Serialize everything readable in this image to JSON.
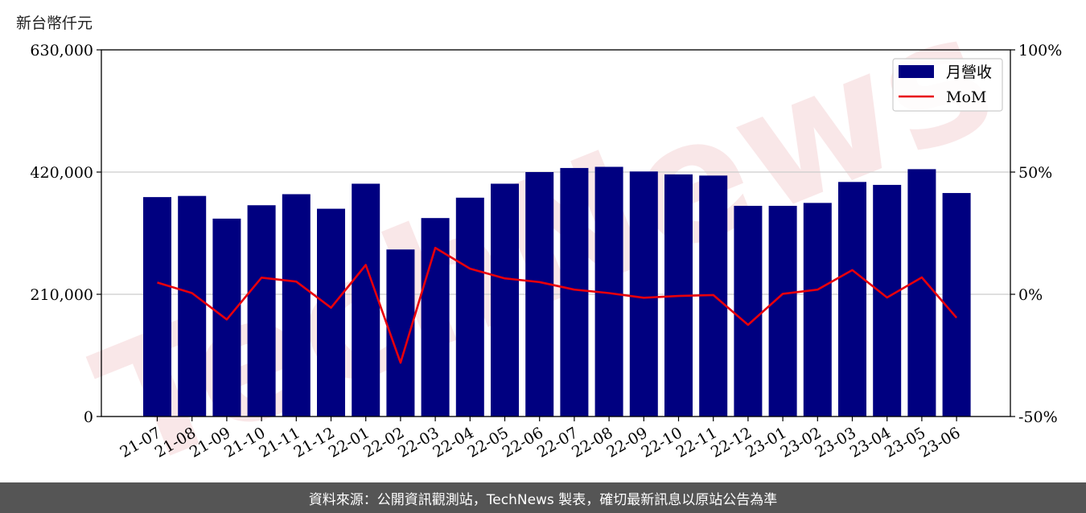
{
  "unit_label": "新台幣仟元",
  "footer_text": "資料來源：公開資訊觀測站，TechNews 製表，確切最新訊息以原站公告為準",
  "watermark": "TechNews",
  "chart_data": {
    "type": "bar",
    "categories": [
      "21-07",
      "21-08",
      "21-09",
      "21-10",
      "21-11",
      "21-12",
      "22-01",
      "22-02",
      "22-03",
      "22-04",
      "22-05",
      "22-06",
      "22-07",
      "22-08",
      "22-09",
      "22-10",
      "22-11",
      "22-12",
      "23-01",
      "23-02",
      "23-03",
      "23-04",
      "23-05",
      "23-06"
    ],
    "series": [
      {
        "name": "月營收",
        "axis": "left",
        "type": "bar",
        "color": "#000080",
        "values": [
          377000,
          379000,
          340000,
          363000,
          382000,
          357000,
          400000,
          287000,
          341000,
          376000,
          400000,
          420000,
          427000,
          429000,
          421000,
          416000,
          414000,
          362000,
          362000,
          367000,
          403000,
          398000,
          425000,
          384000
        ]
      },
      {
        "name": "MoM",
        "axis": "right",
        "type": "line",
        "color": "#e8000b",
        "values": [
          4.8,
          0.5,
          -10.3,
          6.8,
          5.2,
          -5.5,
          12.0,
          -28.0,
          19.0,
          10.5,
          6.5,
          5.0,
          1.9,
          0.5,
          -1.4,
          -0.7,
          -0.3,
          -12.5,
          0.2,
          1.9,
          9.9,
          -1.3,
          6.9,
          -9.6
        ]
      }
    ],
    "ylim_left": [
      0,
      630000
    ],
    "yticks_left": [
      "0",
      "210,000",
      "420,000",
      "630,000"
    ],
    "ylim_right": [
      -50,
      100
    ],
    "yticks_right": [
      "-50%",
      "0%",
      "50%",
      "100%"
    ],
    "grid": "horizontal",
    "legend_position": "top-right"
  }
}
